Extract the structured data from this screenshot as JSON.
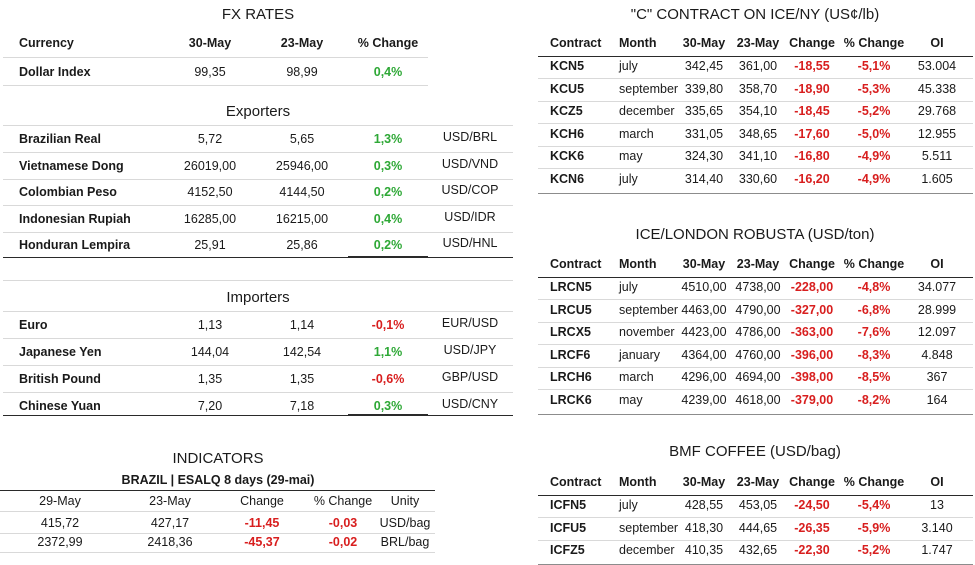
{
  "fx": {
    "title": "FX RATES",
    "headers": [
      "Currency",
      "30-May",
      "23-May",
      "% Change"
    ],
    "dollar": {
      "name": "Dollar Index",
      "v1": "99,35",
      "v2": "98,99",
      "chg": "0,4%"
    },
    "exporters_title": "Exporters",
    "exporters": [
      {
        "name": "Brazilian Real",
        "v1": "5,72",
        "v2": "5,65",
        "chg": "1,3%",
        "pair": "USD/BRL",
        "dir": "up"
      },
      {
        "name": "Vietnamese Dong",
        "v1": "26019,00",
        "v2": "25946,00",
        "chg": "0,3%",
        "pair": "USD/VND",
        "dir": "up"
      },
      {
        "name": "Colombian Peso",
        "v1": "4152,50",
        "v2": "4144,50",
        "chg": "0,2%",
        "pair": "USD/COP",
        "dir": "up"
      },
      {
        "name": "Indonesian Rupiah",
        "v1": "16285,00",
        "v2": "16215,00",
        "chg": "0,4%",
        "pair": "USD/IDR",
        "dir": "up"
      },
      {
        "name": "Honduran Lempira",
        "v1": "25,91",
        "v2": "25,86",
        "chg": "0,2%",
        "pair": "USD/HNL",
        "dir": "up"
      }
    ],
    "importers_title": "Importers",
    "importers": [
      {
        "name": "Euro",
        "v1": "1,13",
        "v2": "1,14",
        "chg": "-0,1%",
        "pair": "EUR/USD",
        "dir": "down"
      },
      {
        "name": "Japanese Yen",
        "v1": "144,04",
        "v2": "142,54",
        "chg": "1,1%",
        "pair": "USD/JPY",
        "dir": "up"
      },
      {
        "name": "British Pound",
        "v1": "1,35",
        "v2": "1,35",
        "chg": "-0,6%",
        "pair": "GBP/USD",
        "dir": "down"
      },
      {
        "name": "Chinese Yuan",
        "v1": "7,20",
        "v2": "7,18",
        "chg": "0,3%",
        "pair": "USD/CNY",
        "dir": "up"
      }
    ]
  },
  "indicators": {
    "title": "INDICATORS",
    "subtitle": "BRAZIL | ESALQ 8 days (29-mai)",
    "headers": [
      "29-May",
      "23-May",
      "Change",
      "% Change",
      "Unity"
    ],
    "rows": [
      {
        "v1": "415,72",
        "v2": "427,17",
        "chg": "-11,45",
        "pct": "-0,03",
        "unit": "USD/bag"
      },
      {
        "v1": "2372,99",
        "v2": "2418,36",
        "chg": "-45,37",
        "pct": "-0,02",
        "unit": "BRL/bag"
      }
    ]
  },
  "ice_ny": {
    "title": "\"C\" CONTRACT ON ICE/NY (US¢/lb)",
    "headers": [
      "Contract",
      "Month",
      "30-May",
      "23-May",
      "Change",
      "% Change",
      "OI"
    ],
    "rows": [
      {
        "c": "KCN5",
        "m": "july",
        "v1": "342,45",
        "v2": "361,00",
        "chg": "-18,55",
        "pct": "-5,1%",
        "oi": "53.004"
      },
      {
        "c": "KCU5",
        "m": "september",
        "v1": "339,80",
        "v2": "358,70",
        "chg": "-18,90",
        "pct": "-5,3%",
        "oi": "45.338"
      },
      {
        "c": "KCZ5",
        "m": "december",
        "v1": "335,65",
        "v2": "354,10",
        "chg": "-18,45",
        "pct": "-5,2%",
        "oi": "29.768"
      },
      {
        "c": "KCH6",
        "m": "march",
        "v1": "331,05",
        "v2": "348,65",
        "chg": "-17,60",
        "pct": "-5,0%",
        "oi": "12.955"
      },
      {
        "c": "KCK6",
        "m": "may",
        "v1": "324,30",
        "v2": "341,10",
        "chg": "-16,80",
        "pct": "-4,9%",
        "oi": "5.511"
      },
      {
        "c": "KCN6",
        "m": "july",
        "v1": "314,40",
        "v2": "330,60",
        "chg": "-16,20",
        "pct": "-4,9%",
        "oi": "1.605"
      }
    ]
  },
  "robusta": {
    "title": "ICE/LONDON ROBUSTA (USD/ton)",
    "headers": [
      "Contract",
      "Month",
      "30-May",
      "23-May",
      "Change",
      "% Change",
      "OI"
    ],
    "rows": [
      {
        "c": "LRCN5",
        "m": "july",
        "v1": "4510,00",
        "v2": "4738,00",
        "chg": "-228,00",
        "pct": "-4,8%",
        "oi": "34.077"
      },
      {
        "c": "LRCU5",
        "m": "september",
        "v1": "4463,00",
        "v2": "4790,00",
        "chg": "-327,00",
        "pct": "-6,8%",
        "oi": "28.999"
      },
      {
        "c": "LRCX5",
        "m": "november",
        "v1": "4423,00",
        "v2": "4786,00",
        "chg": "-363,00",
        "pct": "-7,6%",
        "oi": "12.097"
      },
      {
        "c": "LRCF6",
        "m": "january",
        "v1": "4364,00",
        "v2": "4760,00",
        "chg": "-396,00",
        "pct": "-8,3%",
        "oi": "4.848"
      },
      {
        "c": "LRCH6",
        "m": "march",
        "v1": "4296,00",
        "v2": "4694,00",
        "chg": "-398,00",
        "pct": "-8,5%",
        "oi": "367"
      },
      {
        "c": "LRCK6",
        "m": "may",
        "v1": "4239,00",
        "v2": "4618,00",
        "chg": "-379,00",
        "pct": "-8,2%",
        "oi": "164"
      }
    ]
  },
  "bmf": {
    "title": "BMF COFFEE (USD/bag)",
    "headers": [
      "Contract",
      "Month",
      "30-May",
      "23-May",
      "Change",
      "% Change",
      "OI"
    ],
    "rows": [
      {
        "c": "ICFN5",
        "m": "july",
        "v1": "428,55",
        "v2": "453,05",
        "chg": "-24,50",
        "pct": "-5,4%",
        "oi": "13"
      },
      {
        "c": "ICFU5",
        "m": "september",
        "v1": "418,30",
        "v2": "444,65",
        "chg": "-26,35",
        "pct": "-5,9%",
        "oi": "3.140"
      },
      {
        "c": "ICFZ5",
        "m": "december",
        "v1": "410,35",
        "v2": "432,65",
        "chg": "-22,30",
        "pct": "-5,2%",
        "oi": "1.747"
      }
    ]
  }
}
